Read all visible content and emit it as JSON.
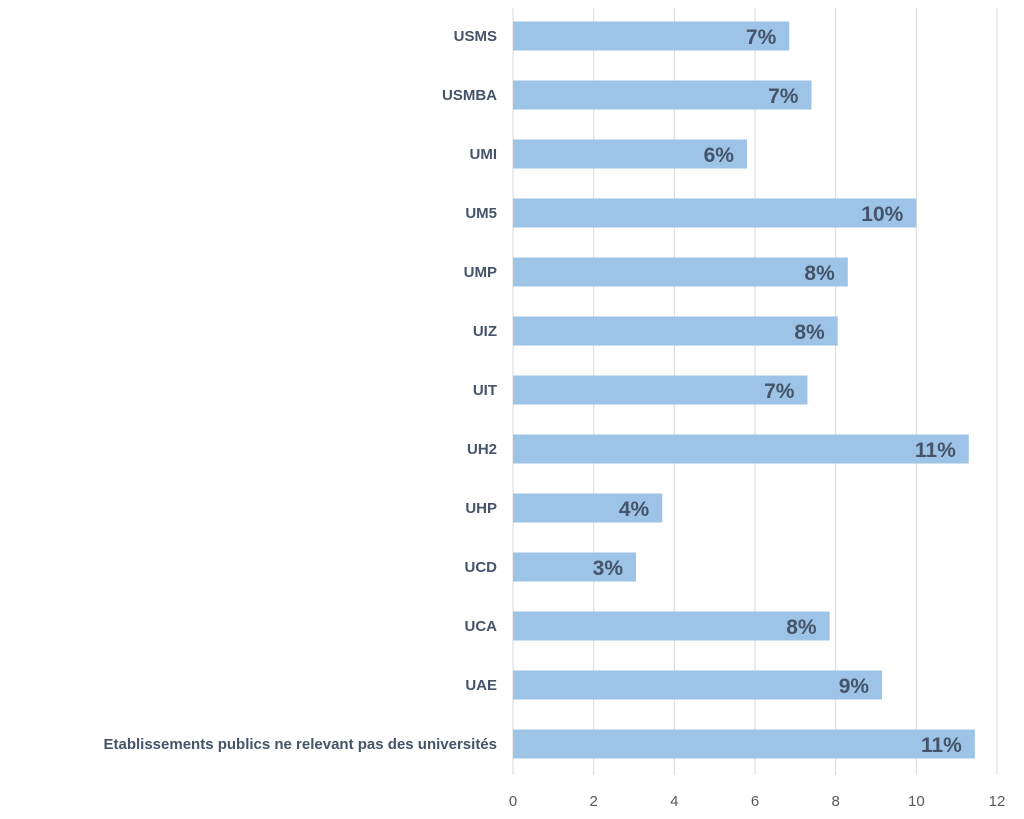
{
  "chart_data": {
    "type": "bar",
    "orientation": "horizontal",
    "categories": [
      "USMS",
      "USMBA",
      "UMI",
      "UM5",
      "UMP",
      "UIZ",
      "UIT",
      "UH2",
      "UHP",
      "UCD",
      "UCA",
      "UAE",
      "Etablissements publics ne relevant pas des universités"
    ],
    "values": [
      6.85,
      7.4,
      5.8,
      10.0,
      8.3,
      8.05,
      7.3,
      11.3,
      3.7,
      3.05,
      7.85,
      9.15,
      11.45
    ],
    "data_labels": [
      "7%",
      "7%",
      "6%",
      "10%",
      "8%",
      "8%",
      "7%",
      "11%",
      "4%",
      "3%",
      "8%",
      "9%",
      "11%"
    ],
    "xlim": [
      0,
      12
    ],
    "x_ticks": [
      "0",
      "2",
      "4",
      "6",
      "8",
      "10",
      "12"
    ],
    "title": "",
    "xlabel": "",
    "ylabel": "",
    "grid": "vertical",
    "bar_color": "#9dc3e6",
    "label_color": "#44546a",
    "legend": "none"
  }
}
